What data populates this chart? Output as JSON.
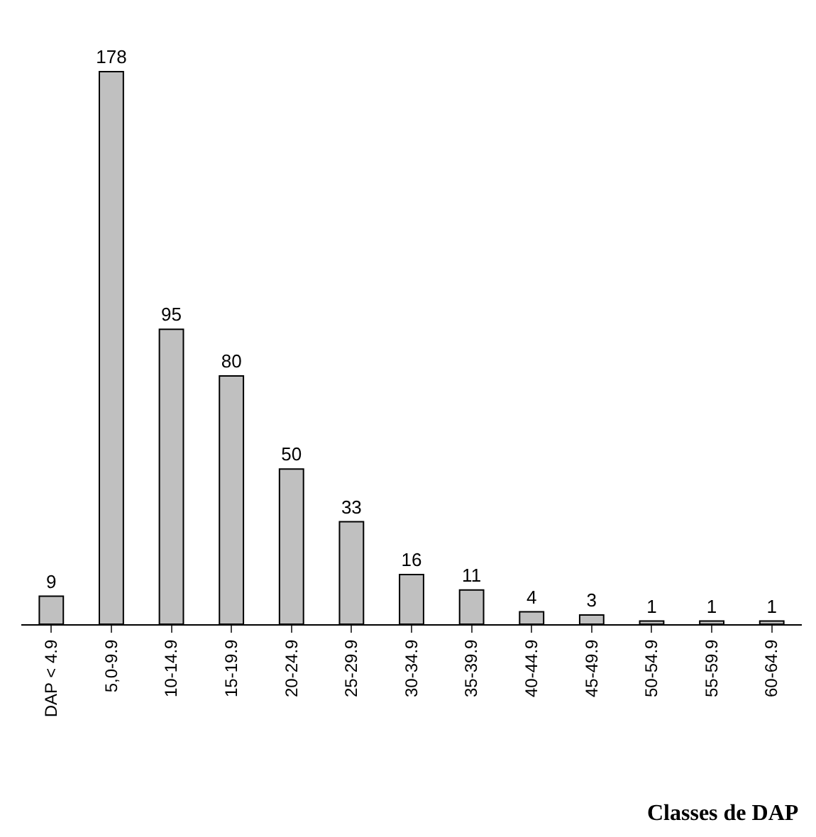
{
  "chart_data": {
    "type": "bar",
    "xlabel": "Classes de DAP",
    "categories": [
      "DAP < 4.9",
      "5,0-9.9",
      "10-14.9",
      "15-19.9",
      "20-24.9",
      "25-29.9",
      "30-34.9",
      "35-39.9",
      "40-44.9",
      "45-49.9",
      "50-54.9",
      "55-59.9",
      "60-64.9"
    ],
    "values": [
      9,
      178,
      95,
      80,
      50,
      33,
      16,
      11,
      4,
      3,
      1,
      1,
      1
    ],
    "color": "#c0c0c0",
    "data_labels": true
  }
}
